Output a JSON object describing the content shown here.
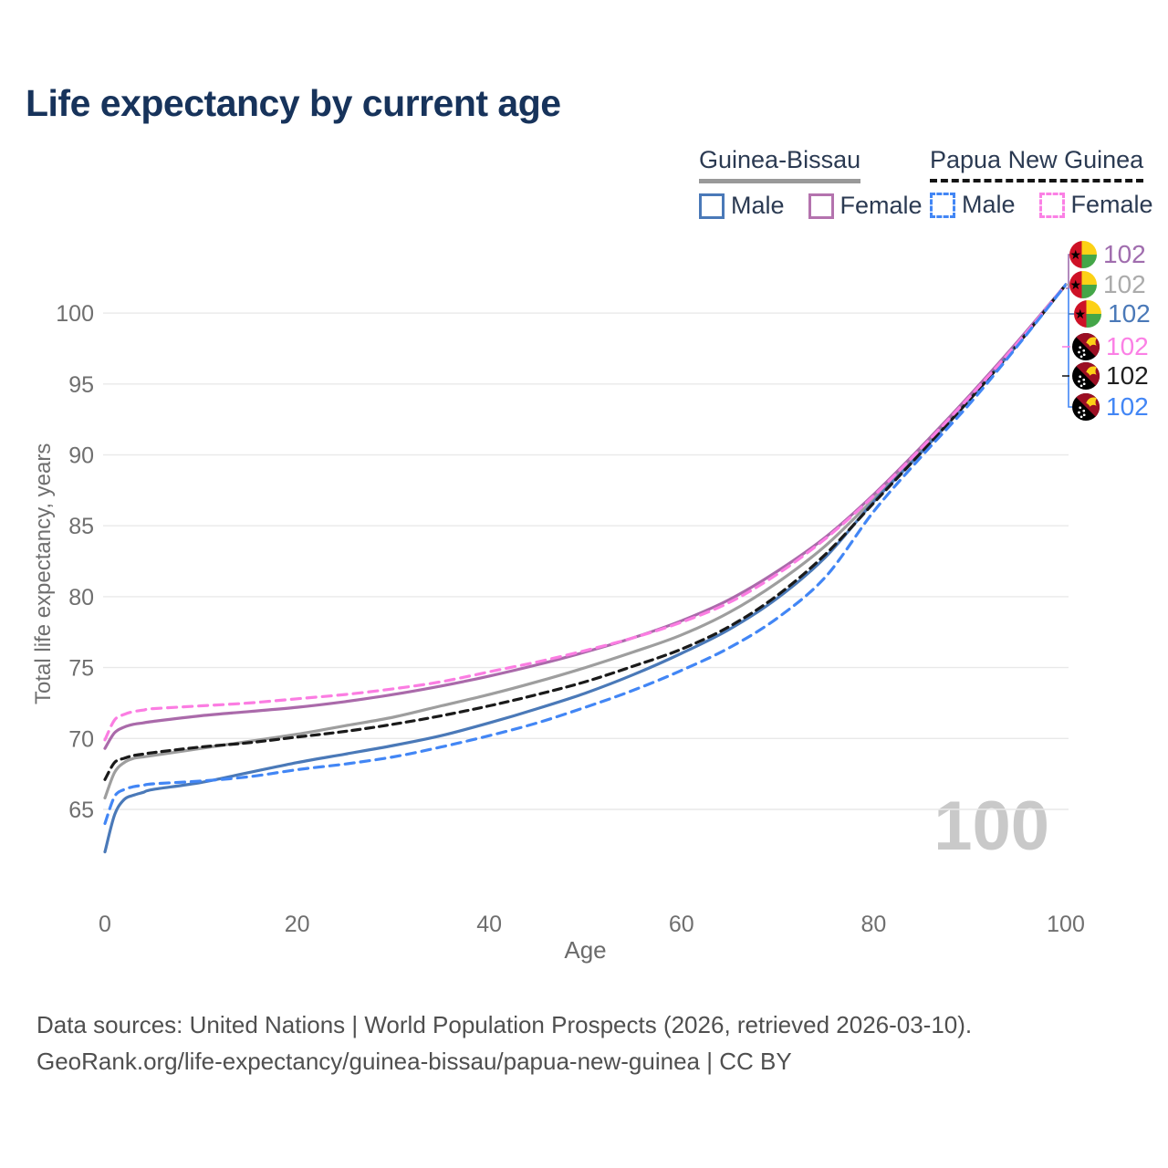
{
  "title": "Life expectancy by current age",
  "legend": {
    "groups": [
      {
        "label": "Guinea-Bissau",
        "line_style": "solid",
        "underline_color": "#999999",
        "items": [
          {
            "label": "Male",
            "color": "#4a79b8",
            "dashed": false
          },
          {
            "label": "Female",
            "color": "#b473ae",
            "dashed": false
          }
        ]
      },
      {
        "label": "Papua New Guinea",
        "line_style": "dashed",
        "underline_color": "#141414",
        "items": [
          {
            "label": "Male",
            "color": "#4286f5",
            "dashed": true
          },
          {
            "label": "Female",
            "color": "#fb80e5",
            "dashed": true
          }
        ]
      }
    ]
  },
  "watermark": "100",
  "footer": {
    "line1": "Data sources: United Nations | World Population Prospects (2026, retrieved 2026-03-10).",
    "line2": "GeoRank.org/life-expectancy/guinea-bissau/papua-new-guinea | CC BY"
  },
  "chart_data": {
    "type": "line",
    "title": "Life expectancy by current age",
    "xlabel": "Age",
    "ylabel": "Total life expectancy, years",
    "xlim": [
      0,
      100
    ],
    "ylim": [
      62,
      103
    ],
    "x_ticks": [
      0,
      20,
      40,
      60,
      80,
      100
    ],
    "y_ticks": [
      65,
      70,
      75,
      80,
      85,
      90,
      95,
      100
    ],
    "grid": "horizontal",
    "legend_position": "top-right",
    "x": [
      0,
      1,
      2,
      3,
      4,
      5,
      10,
      15,
      20,
      25,
      30,
      35,
      40,
      45,
      50,
      55,
      60,
      65,
      70,
      75,
      80,
      85,
      90,
      95,
      100
    ],
    "series": [
      {
        "name": "Guinea-Bissau All",
        "country": "Guinea-Bissau",
        "sex": "all",
        "color": "#9e9e9e",
        "dash": null,
        "values": [
          65.8,
          67.6,
          68.3,
          68.6,
          68.7,
          68.8,
          69.3,
          69.8,
          70.3,
          70.9,
          71.5,
          72.3,
          73.1,
          74.0,
          75.0,
          76.1,
          77.3,
          78.9,
          81.0,
          83.6,
          86.9,
          90.4,
          94.0,
          97.9,
          102
        ]
      },
      {
        "name": "Guinea-Bissau Female",
        "country": "Guinea-Bissau",
        "sex": "female",
        "color": "#aa6aaa",
        "dash": null,
        "values": [
          69.3,
          70.4,
          70.8,
          71.0,
          71.1,
          71.2,
          71.6,
          71.9,
          72.2,
          72.6,
          73.1,
          73.7,
          74.4,
          75.2,
          76.1,
          77.1,
          78.3,
          79.8,
          81.8,
          84.2,
          87.2,
          90.6,
          94.2,
          98.0,
          102
        ]
      },
      {
        "name": "Guinea-Bissau Male",
        "country": "Guinea-Bissau",
        "sex": "male",
        "color": "#4a79b8",
        "dash": null,
        "values": [
          62.0,
          64.6,
          65.7,
          66.0,
          66.2,
          66.4,
          66.9,
          67.6,
          68.3,
          68.9,
          69.5,
          70.2,
          71.1,
          72.1,
          73.2,
          74.5,
          76.0,
          77.7,
          79.9,
          82.8,
          86.7,
          90.2,
          93.9,
          97.8,
          102
        ]
      },
      {
        "name": "Papua New Guinea All",
        "country": "Papua New Guinea",
        "sex": "all",
        "color": "#1a1a1a",
        "dash": "9 6",
        "values": [
          67.1,
          68.3,
          68.6,
          68.8,
          68.9,
          69.0,
          69.4,
          69.7,
          70.1,
          70.5,
          71.0,
          71.6,
          72.3,
          73.1,
          74.0,
          75.1,
          76.3,
          77.9,
          80.1,
          83.0,
          86.6,
          90.2,
          93.9,
          97.8,
          102
        ]
      },
      {
        "name": "Papua New Guinea Female",
        "country": "Papua New Guinea",
        "sex": "female",
        "color": "#fb7de2",
        "dash": "10 7",
        "values": [
          69.9,
          71.3,
          71.7,
          71.9,
          72.0,
          72.1,
          72.3,
          72.5,
          72.8,
          73.1,
          73.5,
          74.0,
          74.7,
          75.4,
          76.2,
          77.1,
          78.2,
          79.6,
          81.6,
          84.1,
          87.1,
          90.5,
          94.1,
          97.9,
          102
        ]
      },
      {
        "name": "Papua New Guinea Male",
        "country": "Papua New Guinea",
        "sex": "male",
        "color": "#4286f5",
        "dash": "10 7",
        "values": [
          64.0,
          65.9,
          66.4,
          66.6,
          66.7,
          66.8,
          67.0,
          67.3,
          67.8,
          68.2,
          68.7,
          69.4,
          70.2,
          71.1,
          72.2,
          73.4,
          74.8,
          76.4,
          78.5,
          81.4,
          86.0,
          89.9,
          93.6,
          97.7,
          102
        ]
      }
    ],
    "end_labels": [
      {
        "flag": "guinea-bissau",
        "series": "Guinea-Bissau Female",
        "value": "102",
        "color": "#a06dae"
      },
      {
        "flag": "guinea-bissau",
        "series": "Guinea-Bissau All",
        "value": "102",
        "color": "#ababab"
      },
      {
        "flag": "guinea-bissau",
        "series": "Guinea-Bissau Male",
        "value": "102",
        "color": "#4a79b8"
      },
      {
        "flag": "papua-new-guinea",
        "series": "Papua New Guinea Female",
        "value": "102",
        "color": "#fb80e5"
      },
      {
        "flag": "papua-new-guinea",
        "series": "Papua New Guinea All",
        "value": "102",
        "color": "#1f1f1f"
      },
      {
        "flag": "papua-new-guinea",
        "series": "Papua New Guinea Male",
        "value": "102",
        "color": "#4286f5"
      }
    ]
  }
}
